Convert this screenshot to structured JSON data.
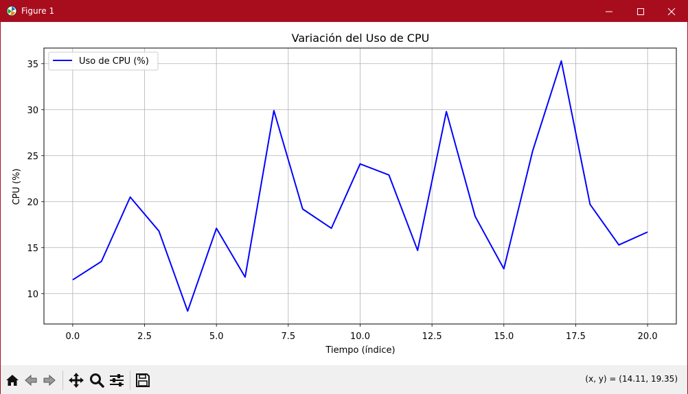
{
  "window": {
    "title": "Figure 1",
    "titlebar_color": "#a80d1e",
    "icons": [
      "app-icon",
      "minimize-icon",
      "maximize-icon",
      "close-icon"
    ]
  },
  "toolbar": {
    "buttons": [
      {
        "name": "home-button",
        "icon": "home-icon"
      },
      {
        "name": "back-button",
        "icon": "back-arrow-icon"
      },
      {
        "name": "forward-button",
        "icon": "forward-arrow-icon"
      },
      {
        "name": "pan-button",
        "icon": "move-icon"
      },
      {
        "name": "zoom-button",
        "icon": "magnifier-icon"
      },
      {
        "name": "configure-subplots-button",
        "icon": "sliders-icon"
      },
      {
        "name": "save-button",
        "icon": "floppy-disk-icon"
      }
    ],
    "coordinates": "(x, y) = (14.11, 19.35)"
  },
  "chart_data": {
    "type": "line",
    "title": "Variación del Uso de CPU",
    "xlabel": "Tiempo (índice)",
    "ylabel": "CPU (%)",
    "xlim": [
      -1,
      21
    ],
    "ylim": [
      6.7,
      36.7
    ],
    "xticks": [
      0.0,
      2.5,
      5.0,
      7.5,
      10.0,
      12.5,
      15.0,
      17.5,
      20.0
    ],
    "xtick_labels": [
      "0.0",
      "2.5",
      "5.0",
      "7.5",
      "10.0",
      "12.5",
      "15.0",
      "17.5",
      "20.0"
    ],
    "yticks": [
      10,
      15,
      20,
      25,
      30,
      35
    ],
    "ytick_labels": [
      "10",
      "15",
      "20",
      "25",
      "30",
      "35"
    ],
    "grid": true,
    "legend_placement": "upper-left",
    "series": [
      {
        "name": "Uso de CPU (%)",
        "color": "#0000ff",
        "x": [
          0,
          1,
          2,
          3,
          4,
          5,
          6,
          7,
          8,
          9,
          10,
          11,
          12,
          13,
          14,
          15,
          16,
          17,
          18,
          19,
          20
        ],
        "y": [
          11.5,
          13.5,
          20.5,
          16.8,
          8.1,
          17.1,
          11.8,
          29.9,
          19.2,
          17.1,
          24.1,
          22.9,
          14.7,
          29.8,
          18.4,
          12.7,
          25.5,
          35.3,
          19.7,
          15.3,
          16.7
        ]
      }
    ]
  }
}
